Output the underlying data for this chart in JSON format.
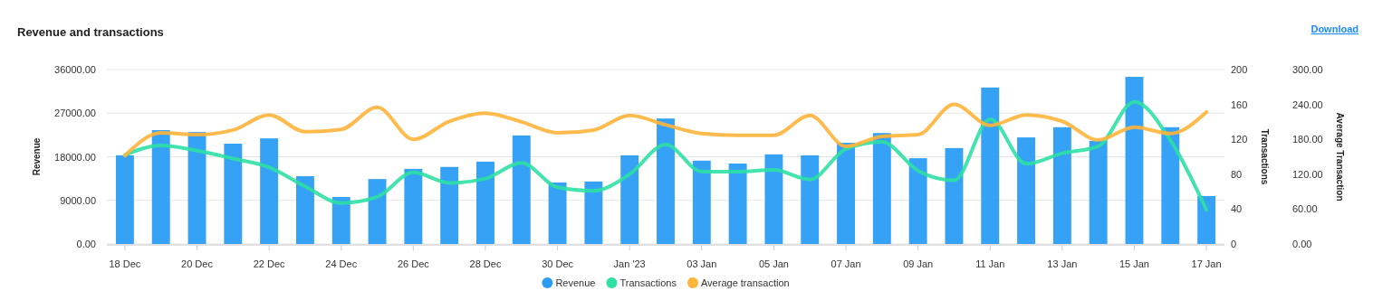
{
  "chart_data": {
    "type": "bar",
    "title": "Revenue and transactions",
    "ylabel": "Revenue",
    "y2label": "Transactions",
    "y3label": "Average Transaction",
    "annotations": [
      "Download"
    ],
    "categories": [
      "18 Dec",
      null,
      "20 Dec",
      null,
      "22 Dec",
      null,
      "24 Dec",
      null,
      "26 Dec",
      null,
      "28 Dec",
      null,
      "30 Dec",
      null,
      "Jan '23",
      null,
      "03 Jan",
      null,
      "05 Jan",
      null,
      "07 Jan",
      null,
      "09 Jan",
      null,
      "11 Jan",
      null,
      "13 Jan",
      null,
      "15 Jan",
      null,
      "17 Jan"
    ],
    "series": [
      {
        "name": "Revenue",
        "color": "#2a9df4",
        "values": [
          18300,
          23500,
          23100,
          20700,
          21800,
          14000,
          9700,
          13400,
          15500,
          15900,
          17000,
          22400,
          12700,
          12900,
          18300,
          25900,
          17200,
          16600,
          18500,
          18300,
          20900,
          22900,
          17700,
          19800,
          32300,
          22000,
          24100,
          21300,
          34500,
          24100,
          9900
        ]
      },
      {
        "name": "Transactions",
        "type": "line",
        "axis": "y2",
        "color": "#2ee0a3",
        "values": [
          102,
          113,
          107,
          98,
          88,
          66,
          47,
          54,
          82,
          70,
          75,
          93,
          65,
          61,
          80,
          114,
          83,
          83,
          85,
          74,
          109,
          117,
          84,
          73,
          143,
          92,
          104,
          112,
          163,
          119,
          39
        ]
      },
      {
        "name": "Average transaction",
        "type": "line",
        "axis": "y3",
        "color": "#ffb43a",
        "values": [
          152,
          191,
          188,
          196,
          222,
          193,
          197,
          235,
          180,
          211,
          225,
          210,
          191,
          196,
          221,
          205,
          190,
          187,
          187,
          221,
          168,
          185,
          188,
          240,
          204,
          222,
          211,
          179,
          201,
          190,
          227
        ]
      }
    ],
    "ylim": [
      0,
      36000
    ],
    "yticks": [
      {
        "value": 0,
        "label": "0.00"
      },
      {
        "value": 9000,
        "label": "9000.00"
      },
      {
        "value": 18000,
        "label": "18000.00"
      },
      {
        "value": 27000,
        "label": "27000.00"
      },
      {
        "value": 36000,
        "label": "36000.00"
      }
    ],
    "y2lim": [
      0,
      200
    ],
    "y2ticks": [
      0,
      40,
      80,
      120,
      160,
      200
    ],
    "y3lim": [
      0,
      300
    ],
    "y3ticks": [
      {
        "value": 0,
        "label": "0.00"
      },
      {
        "value": 60,
        "label": "60.00"
      },
      {
        "value": 120,
        "label": "120.00"
      },
      {
        "value": 180,
        "label": "180.00"
      },
      {
        "value": 240,
        "label": "240.00"
      },
      {
        "value": 300,
        "label": "300.00"
      }
    ],
    "grid": "y",
    "legend": "bottom",
    "line_style": "solid",
    "marker": "none"
  }
}
